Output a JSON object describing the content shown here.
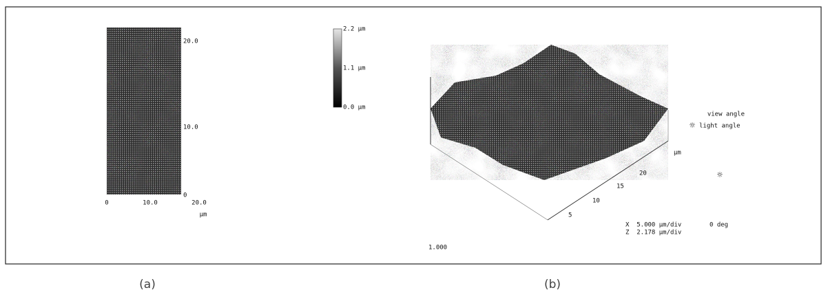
{
  "panel_a": {
    "colorbar_labels": [
      "2.2 µm",
      "1.1 µm",
      "0.0 µm"
    ],
    "y_ticks": [
      "20.0",
      "10.0",
      "0"
    ],
    "x_ticks": [
      "0",
      "10.0",
      "20.0"
    ],
    "x_unit": "µm"
  },
  "panel_b": {
    "view_angle": "view angle",
    "light_angle": "light angle",
    "axis_unit": "µm",
    "axis_ticks": [
      "20",
      "15",
      "10",
      "5"
    ],
    "x_scale": "X  5.000 µm/div",
    "z_scale": "Z  2.178 µm/div",
    "rotation": "0 deg",
    "aspect": "1.000"
  },
  "captions": [
    "(a)",
    "(b)"
  ]
}
